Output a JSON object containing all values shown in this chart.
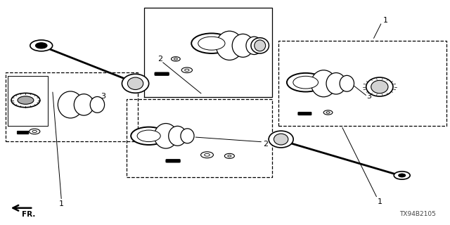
{
  "bg_color": "#ffffff",
  "line_color": "#000000",
  "fig_width": 6.4,
  "fig_height": 3.2,
  "dpi": 100,
  "diagram_code": "TX94B2105",
  "fr_label": "FR."
}
